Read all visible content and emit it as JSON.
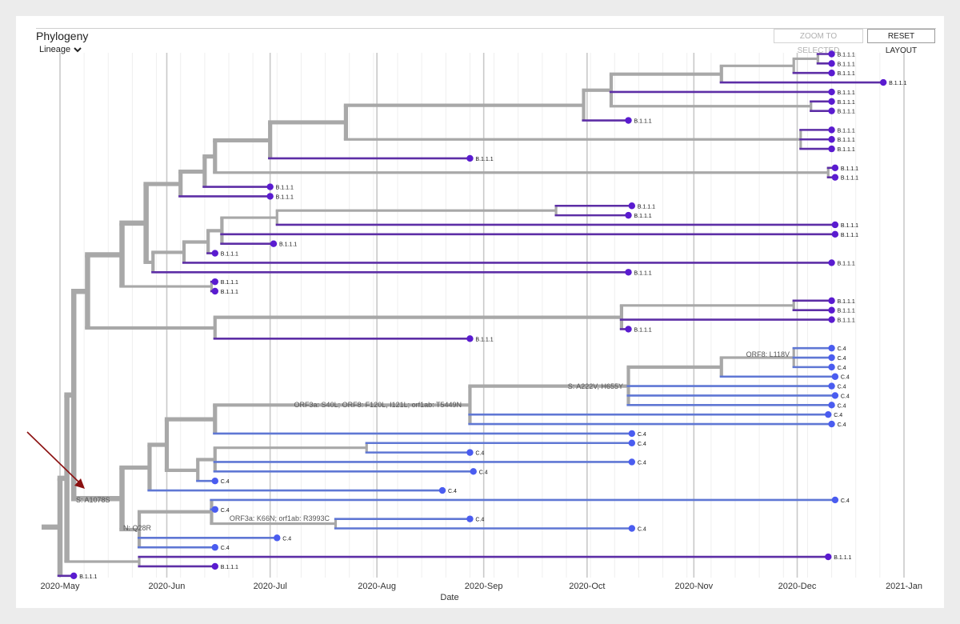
{
  "panel": {
    "title": "Phylogeny",
    "color_by_label": "Lineage",
    "zoom_button": "ZOOM TO SELECTED",
    "reset_button": "RESET LAYOUT"
  },
  "axis": {
    "label": "Date",
    "ticks": [
      "2020-May",
      "2020-Jun",
      "2020-Jul",
      "2020-Aug",
      "2020-Sep",
      "2020-Oct",
      "2020-Nov",
      "2020-Dec",
      "2021-Jan"
    ]
  },
  "colors": {
    "branch": "#a8a8a8",
    "lineage_B111": "#5d2ea6",
    "lineage_C4": "#5f77d4",
    "tip_B111": "#5a1bd0",
    "tip_C4": "#4a5cf0",
    "arrow": "#8b1010"
  },
  "mutation_labels": {
    "spike_a1078s": "S: A1078S",
    "n_q28r": "N: Q28R",
    "orf3a_s40l": "ORF3a: S40L; ORF8: F120L, I121L; orf1ab: T5449N",
    "orf3a_k66n": "ORF3a: K66N; orf1ab: R3993C",
    "spike_a222v": "S: A222V, H655Y",
    "orf8_l118v": "ORF8: L118V"
  },
  "tips": [
    {
      "label": "B.1.1.1",
      "lineage": "B.1.1.1",
      "date": "2020-12-11"
    },
    {
      "label": "B.1.1.1",
      "lineage": "B.1.1.1",
      "date": "2020-12-11"
    },
    {
      "label": "B.1.1.1",
      "lineage": "B.1.1.1",
      "date": "2020-12-11"
    },
    {
      "label": "B.1.1.1",
      "lineage": "B.1.1.1",
      "date": "2020-12-26"
    },
    {
      "label": "B.1.1.1",
      "lineage": "B.1.1.1",
      "date": "2020-12-11"
    },
    {
      "label": "B.1.1.1",
      "lineage": "B.1.1.1",
      "date": "2020-12-11"
    },
    {
      "label": "B.1.1.1",
      "lineage": "B.1.1.1",
      "date": "2020-12-11"
    },
    {
      "label": "B.1.1.1",
      "lineage": "B.1.1.1",
      "date": "2020-10-13"
    },
    {
      "label": "B.1.1.1",
      "lineage": "B.1.1.1",
      "date": "2020-12-11"
    },
    {
      "label": "B.1.1.1",
      "lineage": "B.1.1.1",
      "date": "2020-12-11"
    },
    {
      "label": "B.1.1.1",
      "lineage": "B.1.1.1",
      "date": "2020-12-11"
    },
    {
      "label": "B.1.1.1",
      "lineage": "B.1.1.1",
      "date": "2020-08-28"
    },
    {
      "label": "B.1.1.1",
      "lineage": "B.1.1.1",
      "date": "2020-12-12"
    },
    {
      "label": "B.1.1.1",
      "lineage": "B.1.1.1",
      "date": "2020-12-12"
    },
    {
      "label": "B.1.1.1",
      "lineage": "B.1.1.1",
      "date": "2020-07-01"
    },
    {
      "label": "B.1.1.1",
      "lineage": "B.1.1.1",
      "date": "2020-07-01"
    },
    {
      "label": "B.1.1.1",
      "lineage": "B.1.1.1",
      "date": "2020-10-14"
    },
    {
      "label": "B.1.1.1",
      "lineage": "B.1.1.1",
      "date": "2020-10-13"
    },
    {
      "label": "B.1.1.1",
      "lineage": "B.1.1.1",
      "date": "2020-12-12"
    },
    {
      "label": "B.1.1.1",
      "lineage": "B.1.1.1",
      "date": "2020-12-12"
    },
    {
      "label": "B.1.1.1",
      "lineage": "B.1.1.1",
      "date": "2020-07-02"
    },
    {
      "label": "B.1.1.1",
      "lineage": "B.1.1.1",
      "date": "2020-06-15"
    },
    {
      "label": "B.1.1.1",
      "lineage": "B.1.1.1",
      "date": "2020-12-11"
    },
    {
      "label": "B.1.1.1",
      "lineage": "B.1.1.1",
      "date": "2020-10-13"
    },
    {
      "label": "B.1.1.1",
      "lineage": "B.1.1.1",
      "date": "2020-06-15"
    },
    {
      "label": "B.1.1.1",
      "lineage": "B.1.1.1",
      "date": "2020-06-15"
    },
    {
      "label": "B.1.1.1",
      "lineage": "B.1.1.1",
      "date": "2020-12-11"
    },
    {
      "label": "B.1.1.1",
      "lineage": "B.1.1.1",
      "date": "2020-12-11"
    },
    {
      "label": "B.1.1.1",
      "lineage": "B.1.1.1",
      "date": "2020-12-11"
    },
    {
      "label": "B.1.1.1",
      "lineage": "B.1.1.1",
      "date": "2020-10-13"
    },
    {
      "label": "B.1.1.1",
      "lineage": "B.1.1.1",
      "date": "2020-08-28"
    },
    {
      "label": "C.4",
      "lineage": "C.4",
      "date": "2020-12-11"
    },
    {
      "label": "C.4",
      "lineage": "C.4",
      "date": "2020-12-11"
    },
    {
      "label": "C.4",
      "lineage": "C.4",
      "date": "2020-12-11"
    },
    {
      "label": "C.4",
      "lineage": "C.4",
      "date": "2020-12-12"
    },
    {
      "label": "C.4",
      "lineage": "C.4",
      "date": "2020-12-11"
    },
    {
      "label": "C.4",
      "lineage": "C.4",
      "date": "2020-12-12"
    },
    {
      "label": "C.4",
      "lineage": "C.4",
      "date": "2020-12-11"
    },
    {
      "label": "C.4",
      "lineage": "C.4",
      "date": "2020-12-10"
    },
    {
      "label": "C.4",
      "lineage": "C.4",
      "date": "2020-12-11"
    },
    {
      "label": "C.4",
      "lineage": "C.4",
      "date": "2020-10-14"
    },
    {
      "label": "C.4",
      "lineage": "C.4",
      "date": "2020-10-14"
    },
    {
      "label": "C.4",
      "lineage": "C.4",
      "date": "2020-08-28"
    },
    {
      "label": "C.4",
      "lineage": "C.4",
      "date": "2020-10-14"
    },
    {
      "label": "C.4",
      "lineage": "C.4",
      "date": "2020-08-29"
    },
    {
      "label": "C.4",
      "lineage": "C.4",
      "date": "2020-06-15"
    },
    {
      "label": "C.4",
      "lineage": "C.4",
      "date": "2020-08-20"
    },
    {
      "label": "C.4",
      "lineage": "C.4",
      "date": "2020-12-12"
    },
    {
      "label": "C.4",
      "lineage": "C.4",
      "date": "2020-06-15"
    },
    {
      "label": "C.4",
      "lineage": "C.4",
      "date": "2020-08-28"
    },
    {
      "label": "C.4",
      "lineage": "C.4",
      "date": "2020-10-14"
    },
    {
      "label": "C.4",
      "lineage": "C.4",
      "date": "2020-07-03"
    },
    {
      "label": "C.4",
      "lineage": "C.4",
      "date": "2020-06-15"
    },
    {
      "label": "B.1.1.1",
      "lineage": "B.1.1.1",
      "date": "2020-12-10"
    },
    {
      "label": "B.1.1.1",
      "lineage": "B.1.1.1",
      "date": "2020-06-15"
    },
    {
      "label": "B.1.1.1",
      "lineage": "B.1.1.1",
      "date": "2020-05-05"
    }
  ]
}
